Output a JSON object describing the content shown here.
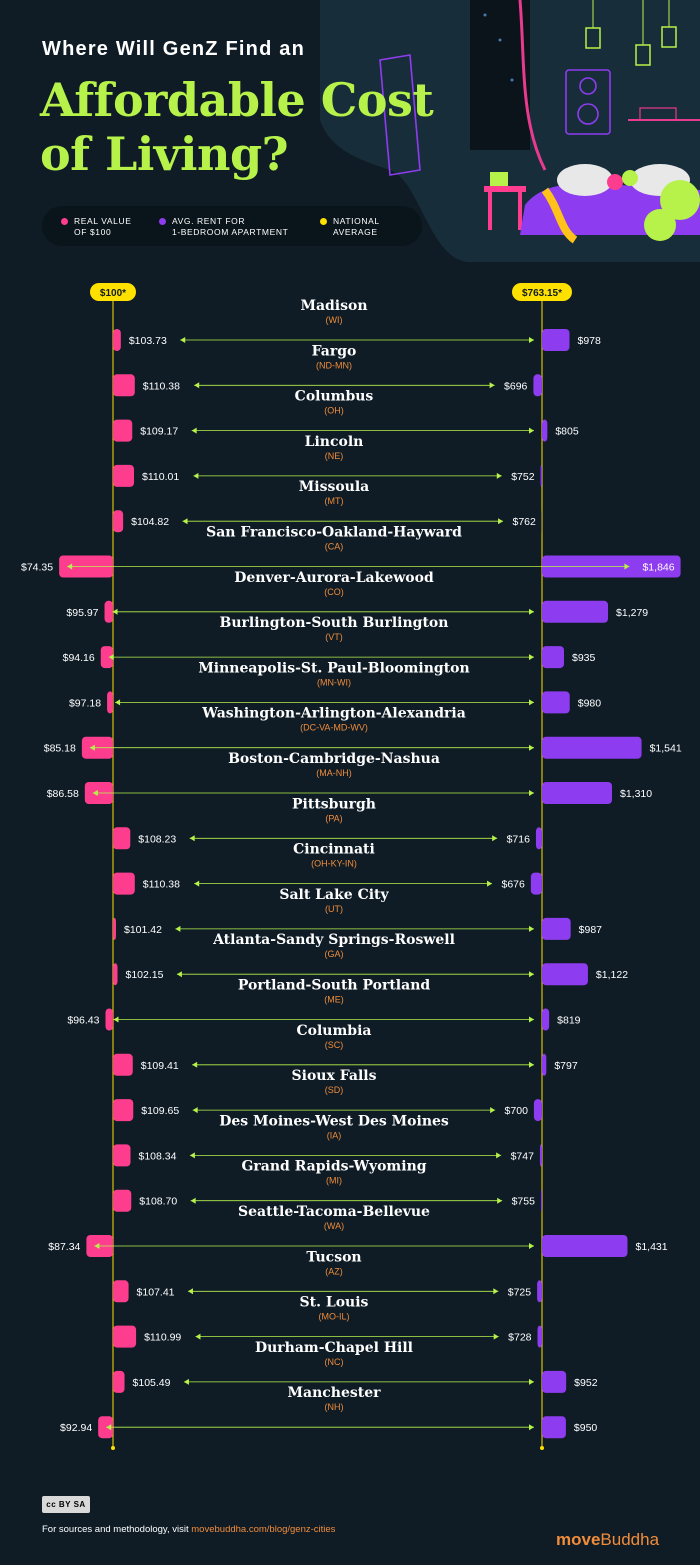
{
  "header": {
    "eyebrow": "Where Will GenZ Find an",
    "title_line1": "Affordable Cost",
    "title_line2": "of Living?"
  },
  "legend": [
    {
      "label_line1": "REAL VALUE",
      "label_line2": "OF $100",
      "color": "#ff3d8f"
    },
    {
      "label_line1": "AVG. RENT FOR",
      "label_line2": "1-BEDROOM APARTMENT",
      "color": "#8e3cf0"
    },
    {
      "label_line1": "NATIONAL",
      "label_line2": "AVERAGE",
      "color": "#ffe100"
    }
  ],
  "colors": {
    "background": "#0f1c26",
    "title_green": "#b6f24a",
    "real_value_pink": "#ff3d8f",
    "rent_purple": "#8e3cf0",
    "national_yellow": "#ffe100",
    "region_orange": "#f08c3a"
  },
  "chart_data": {
    "type": "bar",
    "national_average": {
      "real_value_label": "$100*",
      "real_value": 100,
      "rent_label": "$763.15*",
      "rent": 763.15
    },
    "series": [
      {
        "name": "REAL VALUE OF $100",
        "unit": "$"
      },
      {
        "name": "AVG. RENT FOR 1-BEDROOM APARTMENT",
        "unit": "$"
      }
    ],
    "rows": [
      {
        "city": "Madison",
        "region": "(WI)",
        "real_value": 103.73,
        "real_label": "$103.73",
        "rent": 978,
        "rent_label": "$978"
      },
      {
        "city": "Fargo",
        "region": "(ND-MN)",
        "real_value": 110.38,
        "real_label": "$110.38",
        "rent": 696,
        "rent_label": "$696"
      },
      {
        "city": "Columbus",
        "region": "(OH)",
        "real_value": 109.17,
        "real_label": "$109.17",
        "rent": 805,
        "rent_label": "$805"
      },
      {
        "city": "Lincoln",
        "region": "(NE)",
        "real_value": 110.01,
        "real_label": "$110.01",
        "rent": 752,
        "rent_label": "$752"
      },
      {
        "city": "Missoula",
        "region": "(MT)",
        "real_value": 104.82,
        "real_label": "$104.82",
        "rent": 762,
        "rent_label": "$762"
      },
      {
        "city": "San Francisco-Oakland-Hayward",
        "region": "(CA)",
        "real_value": 74.35,
        "real_label": "$74.35",
        "rent": 1846,
        "rent_label": "$1,846"
      },
      {
        "city": "Denver-Aurora-Lakewood",
        "region": "(CO)",
        "real_value": 95.97,
        "real_label": "$95.97",
        "rent": 1279,
        "rent_label": "$1,279"
      },
      {
        "city": "Burlington-South Burlington",
        "region": "(VT)",
        "real_value": 94.16,
        "real_label": "$94.16",
        "rent": 935,
        "rent_label": "$935"
      },
      {
        "city": "Minneapolis-St. Paul-Bloomington",
        "region": "(MN-WI)",
        "real_value": 97.18,
        "real_label": "$97.18",
        "rent": 980,
        "rent_label": "$980"
      },
      {
        "city": "Washington-Arlington-Alexandria",
        "region": "(DC-VA-MD-WV)",
        "real_value": 85.18,
        "real_label": "$85.18",
        "rent": 1541,
        "rent_label": "$1,541"
      },
      {
        "city": "Boston-Cambridge-Nashua",
        "region": "(MA-NH)",
        "real_value": 86.58,
        "real_label": "$86.58",
        "rent": 1310,
        "rent_label": "$1,310"
      },
      {
        "city": "Pittsburgh",
        "region": "(PA)",
        "real_value": 108.23,
        "real_label": "$108.23",
        "rent": 716,
        "rent_label": "$716"
      },
      {
        "city": "Cincinnati",
        "region": "(OH-KY-IN)",
        "real_value": 110.38,
        "real_label": "$110.38",
        "rent": 676,
        "rent_label": "$676"
      },
      {
        "city": "Salt Lake City",
        "region": "(UT)",
        "real_value": 101.42,
        "real_label": "$101.42",
        "rent": 987,
        "rent_label": "$987"
      },
      {
        "city": "Atlanta-Sandy Springs-Roswell",
        "region": "(GA)",
        "real_value": 102.15,
        "real_label": "$102.15",
        "rent": 1122,
        "rent_label": "$1,122"
      },
      {
        "city": "Portland-South Portland",
        "region": "(ME)",
        "real_value": 96.43,
        "real_label": "$96.43",
        "rent": 819,
        "rent_label": "$819"
      },
      {
        "city": "Columbia",
        "region": "(SC)",
        "real_value": 109.41,
        "real_label": "$109.41",
        "rent": 797,
        "rent_label": "$797"
      },
      {
        "city": "Sioux Falls",
        "region": "(SD)",
        "real_value": 109.65,
        "real_label": "$109.65",
        "rent": 700,
        "rent_label": "$700"
      },
      {
        "city": "Des Moines-West Des Moines",
        "region": "(IA)",
        "real_value": 108.34,
        "real_label": "$108.34",
        "rent": 747,
        "rent_label": "$747"
      },
      {
        "city": "Grand Rapids-Wyoming",
        "region": "(MI)",
        "real_value": 108.7,
        "real_label": "$108.70",
        "rent": 755,
        "rent_label": "$755"
      },
      {
        "city": "Seattle-Tacoma-Bellevue",
        "region": "(WA)",
        "real_value": 87.34,
        "real_label": "$87.34",
        "rent": 1431,
        "rent_label": "$1,431"
      },
      {
        "city": "Tucson",
        "region": "(AZ)",
        "real_value": 107.41,
        "real_label": "$107.41",
        "rent": 725,
        "rent_label": "$725"
      },
      {
        "city": "St. Louis",
        "region": "(MO-IL)",
        "real_value": 110.99,
        "real_label": "$110.99",
        "rent": 728,
        "rent_label": "$728"
      },
      {
        "city": "Durham-Chapel Hill",
        "region": "(NC)",
        "real_value": 105.49,
        "real_label": "$105.49",
        "rent": 952,
        "rent_label": "$952"
      },
      {
        "city": "Manchester",
        "region": "(NH)",
        "real_value": 92.94,
        "real_label": "$92.94",
        "rent": 950,
        "rent_label": "$950"
      }
    ]
  },
  "footer": {
    "cc_label": "cc BY SA",
    "note_prefix": "For sources and methodology, visit ",
    "note_link": "movebuddha.com/blog/genz-cities",
    "brand_part1": "move",
    "brand_part2": "Buddha"
  }
}
